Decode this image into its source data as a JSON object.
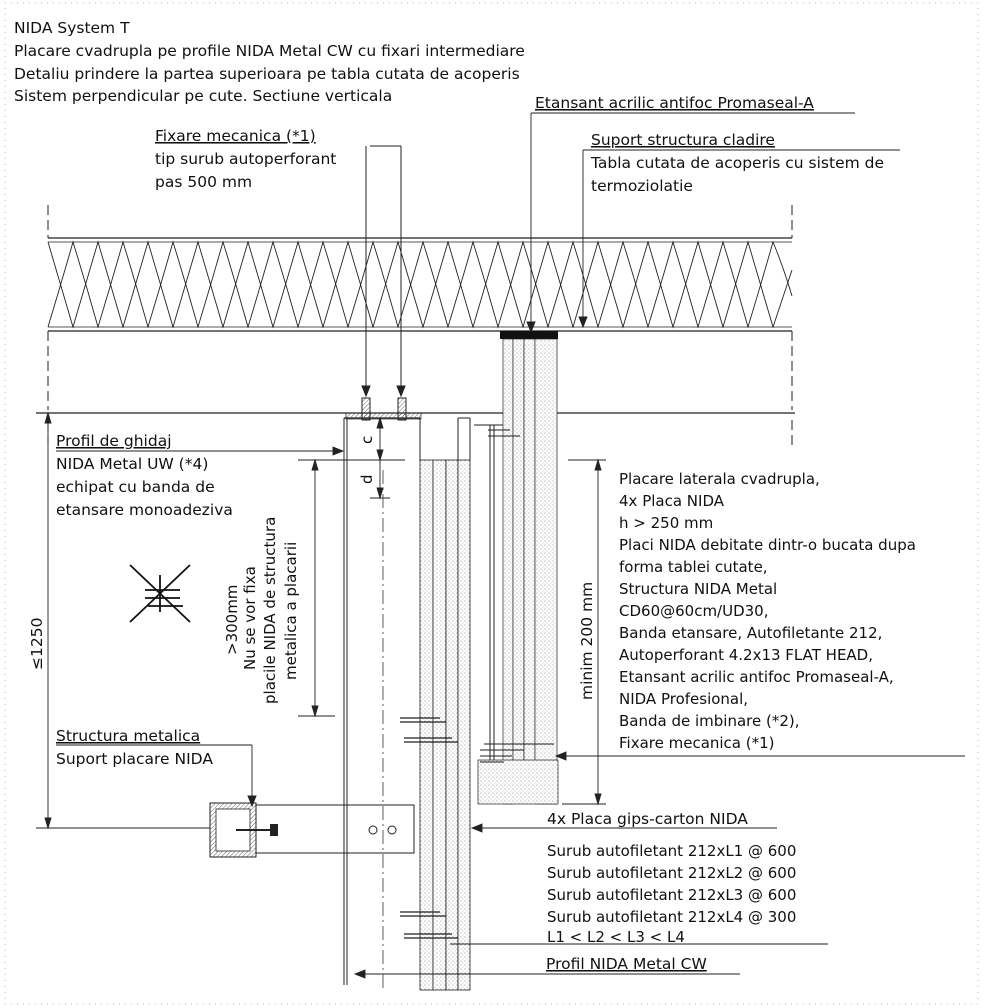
{
  "header": {
    "line1": "NIDA System T",
    "line2": "Placare cvadrupla pe profile NIDA Metal CW cu fixari intermediare",
    "line3": "Detaliu prindere la partea superioara pe tabla cutata de acoperis",
    "line4": "Sistem perpendicular pe cute. Sectiune verticala"
  },
  "callouts": {
    "etansant_top": "Etansant acrilic antifoc Promaseal-A",
    "fixare_title": "Fixare mecanica (*1)",
    "fixare_l2": "tip surub autoperforant",
    "fixare_l3": "pas 500 mm",
    "suport_title": "Suport structura cladire",
    "suport_l2": "Tabla cutata de acoperis cu sistem de",
    "suport_l3": "termoziolatie",
    "profil_title": "Profil de ghidaj",
    "profil_l2": "NIDA Metal UW (*4)",
    "profil_l3": "echipat cu banda de",
    "profil_l4": "etansare monoadeziva",
    "structura_title": "Structura metalica",
    "structura_l2": "Suport placare NIDA",
    "placa_title": "4x Placa gips-carton NIDA",
    "profil_cw": "Profil NIDA Metal CW"
  },
  "placare_list": [
    "Placare laterala cvadrupla,",
    "4x Placa NIDA",
    "h > 250 mm",
    "Placi NIDA debitate dintr-o bucata dupa",
    "forma tablei cutate,",
    "Structura NIDA Metal",
    "CD60@60cm/UD30,",
    "Banda etansare, Autofiletante 212,",
    "Autoperforant 4.2x13 FLAT HEAD,",
    "Etansant acrilic antifoc Promaseal-A,",
    "NIDA Profesional,",
    "Banda de imbinare (*2),",
    "Fixare mecanica (*1)"
  ],
  "surub_list": [
    "Surub autofiletant 212xL1 @ 600",
    "Surub autofiletant 212xL2 @ 600",
    "Surub autofiletant 212xL3 @ 600",
    "Surub autofiletant 212xL4 @ 300",
    "L1 < L2 < L3 < L4"
  ],
  "dimensions": {
    "c": "c",
    "d": "d",
    "max_height": "≤1250",
    "min_300_l1": ">300mm",
    "min_300_l2": "Nu se vor fixa",
    "min_300_l3": "placile NIDA de structura",
    "min_300_l4": "metalica a placarii",
    "minim_200": "minim 200 mm"
  }
}
